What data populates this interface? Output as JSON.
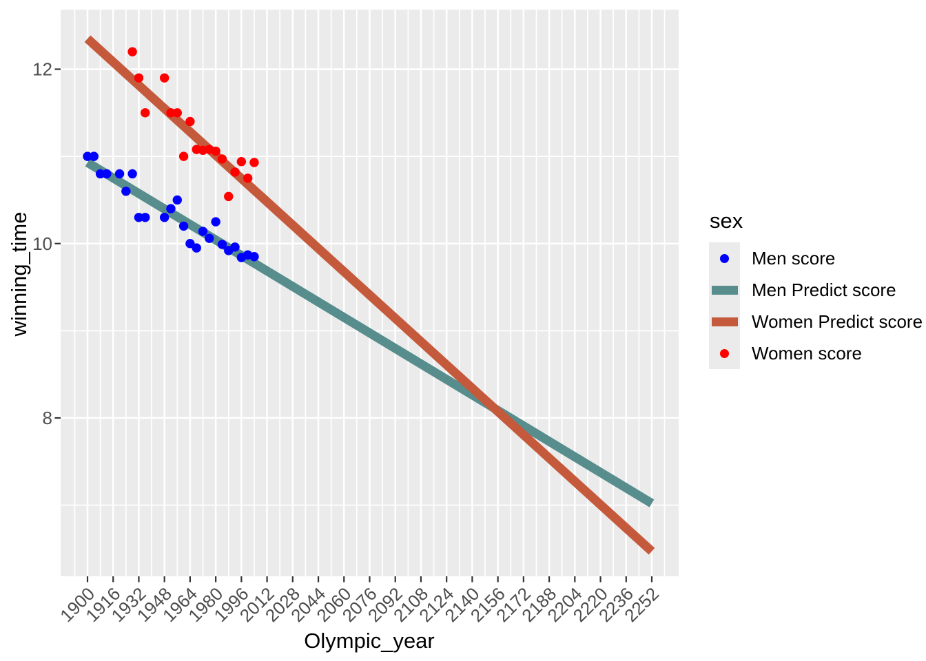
{
  "figure": {
    "xlabel": "Olympic_year",
    "ylabel": "winning_time"
  },
  "legend": {
    "title": "sex",
    "items": [
      {
        "label": "Men score",
        "symbol": "point",
        "color": "#0000FF"
      },
      {
        "label": "Men Predict score",
        "symbol": "line",
        "color": "#578D8D"
      },
      {
        "label": "Women Predict score",
        "symbol": "line",
        "color": "#C5593C"
      },
      {
        "label": "Women score",
        "symbol": "point",
        "color": "#FF0000"
      }
    ]
  },
  "colors": {
    "page_bg": "#FFFFFF",
    "panel_bg": "#EBEBEB",
    "grid": "#FFFFFF",
    "tick_mark": "#333333",
    "tick_text": "#4D4D4D",
    "axis_title": "#000000",
    "men_point": "#0000FF",
    "women_point": "#FF0000",
    "men_line": "#578D8D",
    "women_line": "#C5593C"
  },
  "chart_data": {
    "type": "scatter",
    "title": "",
    "xlabel": "Olympic_year",
    "ylabel": "winning_time",
    "xlim": [
      1883,
      2269
    ],
    "ylim": [
      6.17,
      12.68
    ],
    "x_major_ticks": [
      1900,
      1916,
      1932,
      1948,
      1964,
      1980,
      1996,
      2012,
      2028,
      2044,
      2060,
      2076,
      2092,
      2108,
      2124,
      2140,
      2156,
      2172,
      2188,
      2204,
      2220,
      2236,
      2252
    ],
    "y_major_ticks": [
      8,
      10,
      12
    ],
    "x_minor_every": 8,
    "y_minor_every": 1,
    "grid": "white major and minor gridlines on gray panel",
    "legend_position": "right",
    "series": [
      {
        "name": "Men score",
        "type": "scatter",
        "color": "#0000FF",
        "points": [
          [
            1900,
            11.0
          ],
          [
            1904,
            11.0
          ],
          [
            1908,
            10.8
          ],
          [
            1912,
            10.8
          ],
          [
            1920,
            10.8
          ],
          [
            1924,
            10.6
          ],
          [
            1928,
            10.8
          ],
          [
            1932,
            10.3
          ],
          [
            1936,
            10.3
          ],
          [
            1948,
            10.3
          ],
          [
            1952,
            10.4
          ],
          [
            1956,
            10.5
          ],
          [
            1960,
            10.2
          ],
          [
            1964,
            10.0
          ],
          [
            1968,
            9.95
          ],
          [
            1972,
            10.14
          ],
          [
            1976,
            10.06
          ],
          [
            1980,
            10.25
          ],
          [
            1984,
            9.99
          ],
          [
            1988,
            9.92
          ],
          [
            1992,
            9.96
          ],
          [
            1996,
            9.84
          ],
          [
            2000,
            9.87
          ],
          [
            2004,
            9.85
          ]
        ]
      },
      {
        "name": "Men Predict score",
        "type": "line",
        "color": "#578D8D",
        "points": [
          [
            1900,
            10.93
          ],
          [
            2252,
            7.02
          ]
        ]
      },
      {
        "name": "Women Predict score",
        "type": "line",
        "color": "#C5593C",
        "points": [
          [
            1900,
            12.35
          ],
          [
            2252,
            6.47
          ]
        ]
      },
      {
        "name": "Women score",
        "type": "scatter",
        "color": "#FF0000",
        "points": [
          [
            1928,
            12.2
          ],
          [
            1932,
            11.9
          ],
          [
            1936,
            11.5
          ],
          [
            1948,
            11.9
          ],
          [
            1952,
            11.5
          ],
          [
            1956,
            11.5
          ],
          [
            1960,
            11.0
          ],
          [
            1964,
            11.4
          ],
          [
            1968,
            11.08
          ],
          [
            1972,
            11.07
          ],
          [
            1976,
            11.08
          ],
          [
            1980,
            11.06
          ],
          [
            1984,
            10.97
          ],
          [
            1988,
            10.54
          ],
          [
            1992,
            10.82
          ],
          [
            1996,
            10.94
          ],
          [
            2000,
            10.75
          ],
          [
            2004,
            10.93
          ]
        ]
      }
    ]
  }
}
